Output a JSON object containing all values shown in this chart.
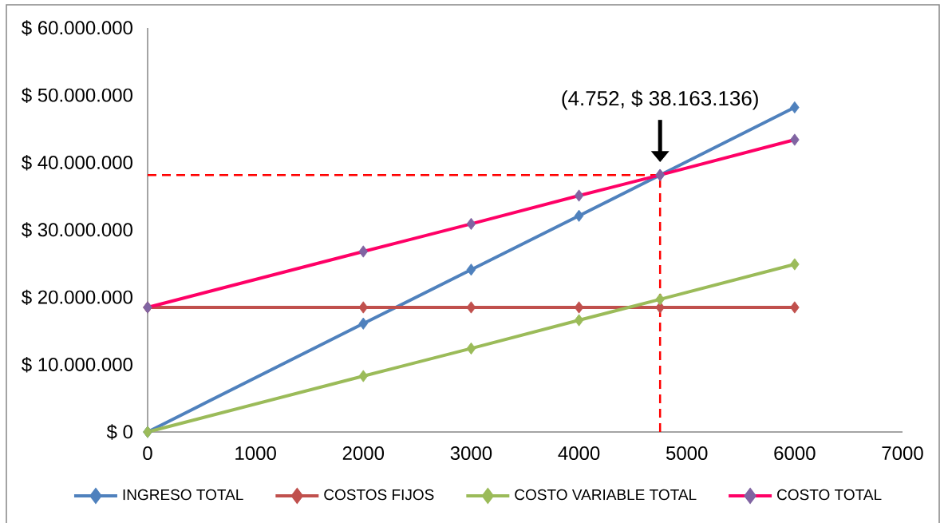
{
  "chart_data": {
    "type": "line",
    "x": [
      0,
      2000,
      3000,
      4000,
      4752,
      6000
    ],
    "series": [
      {
        "name": "INGRESO TOTAL",
        "color": "#4f81bd",
        "values": [
          0,
          16100000,
          24100000,
          32100000,
          38163136,
          48200000
        ]
      },
      {
        "name": "COSTOS FIJOS",
        "color": "#c0504d",
        "values": [
          18500000,
          18500000,
          18500000,
          18500000,
          18500000,
          18500000
        ]
      },
      {
        "name": "COSTO VARIABLE TOTAL",
        "color": "#9bbb59",
        "values": [
          0,
          8300000,
          12400000,
          16600000,
          19700000,
          24900000
        ]
      },
      {
        "name": "COSTO TOTAL",
        "color": "#ff0066",
        "colors": [
          "#8064a2",
          "#8064a2",
          "#8064a2",
          "#8064a2",
          "#8064a2",
          "#8064a2"
        ],
        "values": [
          18500000,
          26800000,
          30900000,
          35100000,
          38163136,
          43400000
        ]
      }
    ],
    "xlim": [
      0,
      7000
    ],
    "xticks": [
      0,
      1000,
      2000,
      3000,
      4000,
      5000,
      6000,
      7000
    ],
    "ylim": [
      0,
      60000000
    ],
    "yticks": [
      {
        "value": 0,
        "label": "$ 0"
      },
      {
        "value": 10000000,
        "label": "$ 10.000.000"
      },
      {
        "value": 20000000,
        "label": "$ 20.000.000"
      },
      {
        "value": 30000000,
        "label": "$ 30.000.000"
      },
      {
        "value": 40000000,
        "label": "$ 40.000.000"
      },
      {
        "value": 50000000,
        "label": "$ 50.000.000"
      },
      {
        "value": 60000000,
        "label": "$ 60.000.000"
      }
    ],
    "marker": "diamond",
    "legend": "bottom",
    "grid": false,
    "ref_lines": [
      {
        "axis": "x",
        "value": 4752,
        "color": "#ff0000",
        "line_style": "dashed"
      },
      {
        "axis": "y",
        "value": 38163136,
        "color": "#ff0000",
        "line_style": "dashed"
      }
    ],
    "annotations": [
      "(4.752, $ 38.163.136)"
    ]
  }
}
